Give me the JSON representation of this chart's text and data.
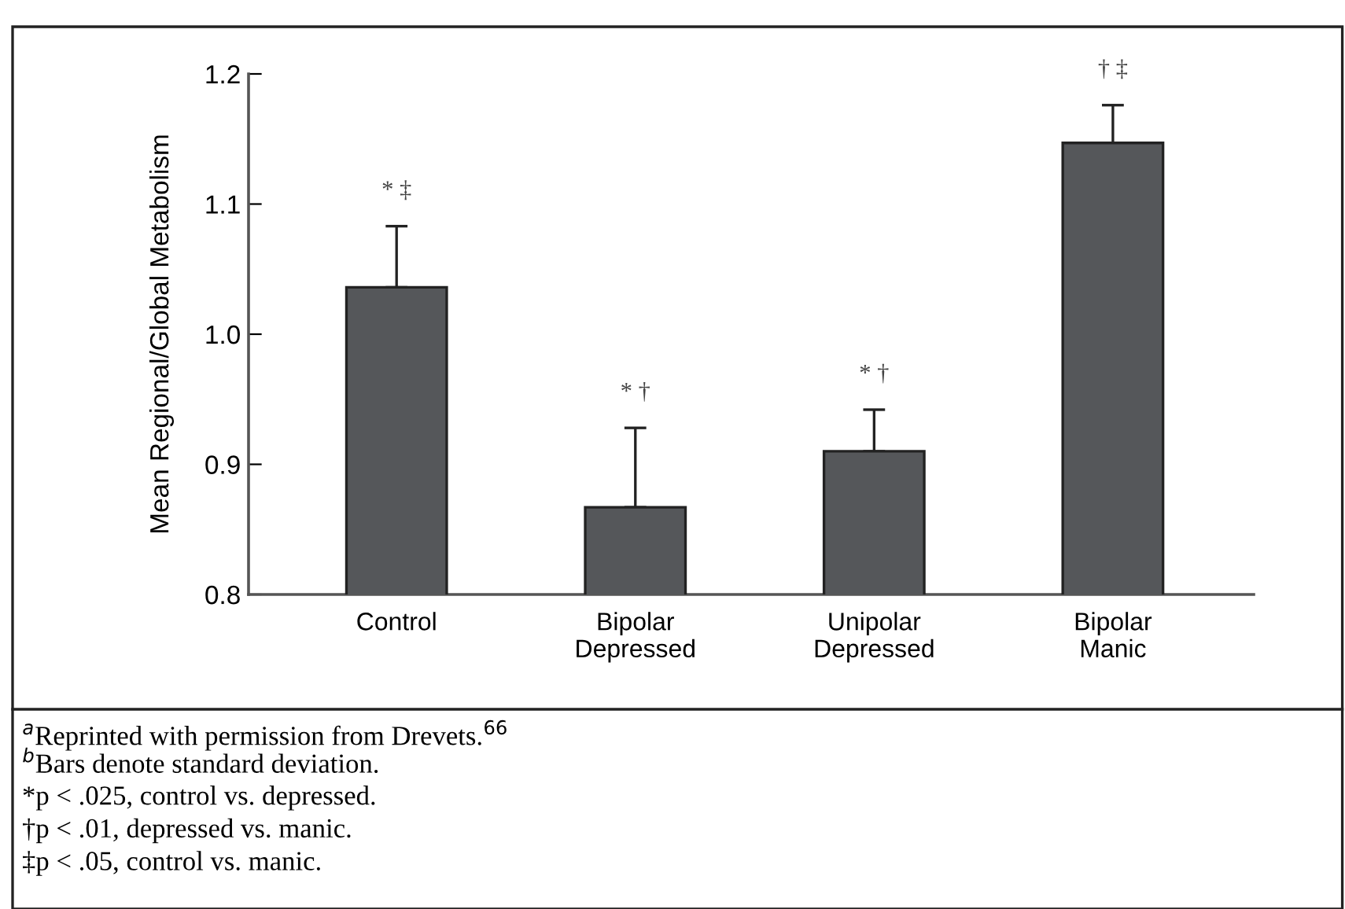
{
  "chart_data": {
    "type": "bar",
    "ylabel": "Mean Regional/Global Metabolism",
    "categories": [
      "Control",
      "Bipolar\nDepressed",
      "Unipolar\nDepressed",
      "Bipolar\nManic"
    ],
    "values": [
      1.036,
      0.867,
      0.91,
      1.147
    ],
    "errors": [
      [
        1.036,
        1.083
      ],
      [
        0.867,
        0.928
      ],
      [
        0.91,
        0.942
      ],
      [
        1.147,
        1.176
      ]
    ],
    "color": "#55575a",
    "ylim": [
      0.8,
      1.2
    ],
    "yticks": [
      {
        "value": 0.8,
        "label": "0.8"
      },
      {
        "value": 0.9,
        "label": "0.9"
      },
      {
        "value": 1.0,
        "label": "1.0"
      },
      {
        "value": 1.1,
        "label": "1.1"
      },
      {
        "value": 1.2,
        "label": "1.2"
      }
    ],
    "grid": false,
    "legend": false,
    "annotations": [
      {
        "text": "* ‡",
        "x": "Control",
        "y": 1.083
      },
      {
        "text": "* †",
        "x": "Bipolar\nDepressed",
        "y": 0.928
      },
      {
        "text": "* †",
        "x": "Unipolar\nDepressed",
        "y": 0.942
      },
      {
        "text": "† ‡",
        "x": "Bipolar\nManic",
        "y": 1.176
      },
      "$^{a}$Reprinted with permission from Drevets.$^{66}$",
      "$^{b}$Bars denote standard deviation.",
      "*p < .025, control vs. depressed.",
      "†p < .01, depressed vs. manic.",
      "‡p < .05, control vs. manic."
    ]
  }
}
